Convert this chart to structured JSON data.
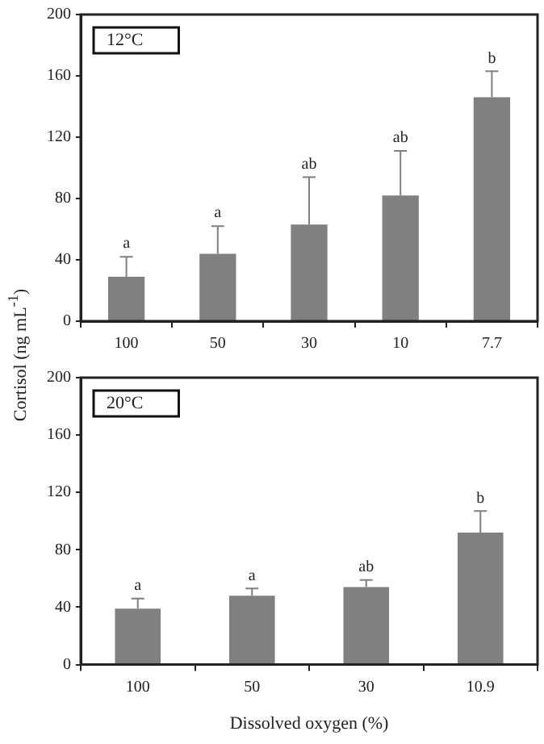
{
  "chart_data": [
    {
      "type": "bar",
      "title": "12°C",
      "ylabel": "Cortisol (ng mL$^{-1}$)",
      "categories": [
        "100",
        "50",
        "30",
        "10",
        "7.7"
      ],
      "values": [
        29,
        44,
        63,
        82,
        146
      ],
      "color": "#808080",
      "errors": [
        [
          29,
          42
        ],
        [
          44,
          62
        ],
        [
          63,
          94
        ],
        [
          82,
          111
        ],
        [
          146,
          163
        ]
      ],
      "ylim": [
        0,
        200
      ],
      "yticks": [
        0,
        40,
        80,
        120,
        160,
        200
      ],
      "grid": false,
      "legend": false,
      "annotations": [
        {
          "text": "a",
          "x": "100",
          "y": 42
        },
        {
          "text": "a",
          "x": "50",
          "y": 62
        },
        {
          "text": "ab",
          "x": "30",
          "y": 94
        },
        {
          "text": "ab",
          "x": "10",
          "y": 111
        },
        {
          "text": "b",
          "x": "7.7",
          "y": 163
        }
      ]
    },
    {
      "type": "bar",
      "title": "20°C",
      "xlabel": "Dissolved oxygen (%)",
      "categories": [
        "100",
        "50",
        "30",
        "10.9"
      ],
      "values": [
        39,
        48,
        54,
        92
      ],
      "color": "#808080",
      "errors": [
        [
          39,
          46
        ],
        [
          48,
          53
        ],
        [
          54,
          59
        ],
        [
          92,
          107
        ]
      ],
      "ylim": [
        0,
        200
      ],
      "yticks": [
        0,
        40,
        80,
        120,
        160,
        200
      ],
      "grid": false,
      "legend": false,
      "annotations": [
        {
          "text": "a",
          "x": "100",
          "y": 46
        },
        {
          "text": "a",
          "x": "50",
          "y": 53
        },
        {
          "text": "ab",
          "x": "30",
          "y": 59
        },
        {
          "text": "b",
          "x": "10.9",
          "y": 107
        }
      ]
    }
  ]
}
